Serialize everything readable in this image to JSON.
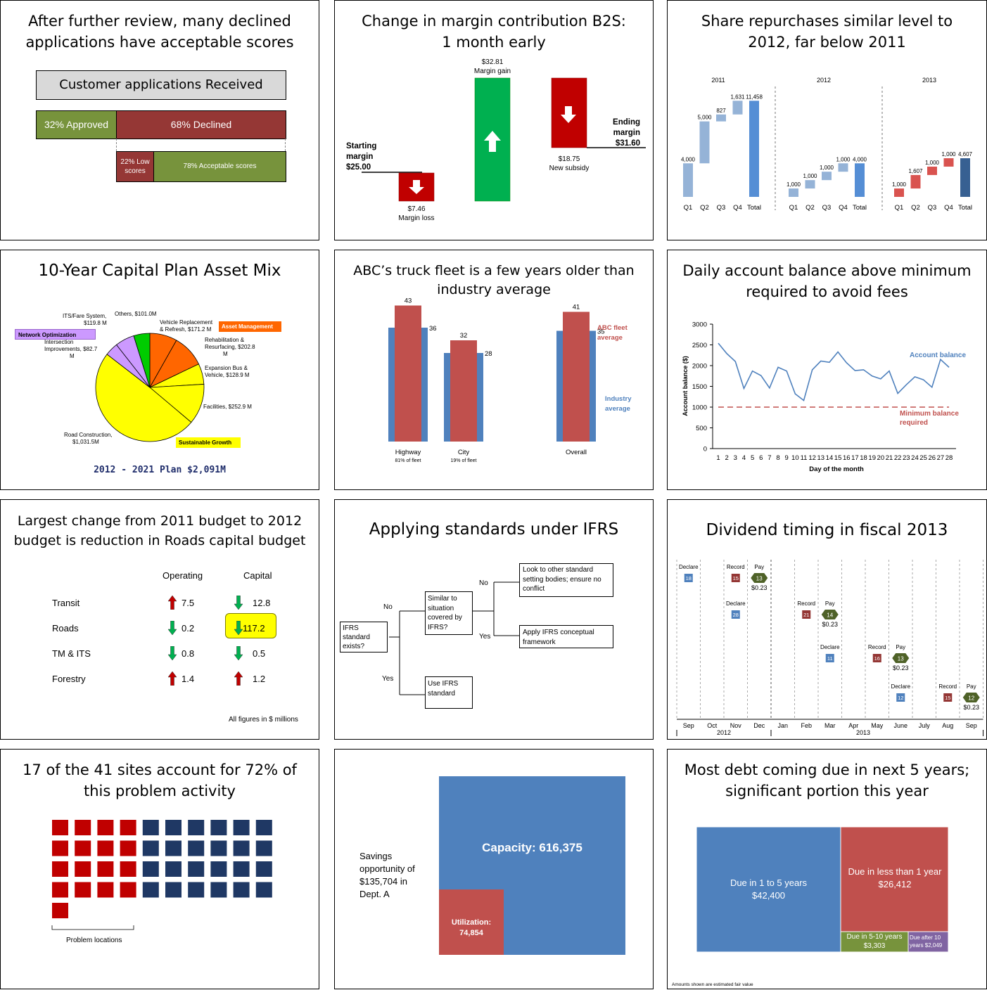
{
  "p1": {
    "title": "After further review, many declined\napplications have acceptable scores",
    "header": "Customer applications Received",
    "approved": "32% Approved",
    "declined": "68% Declined",
    "low": "22% Low\nscores",
    "acceptable": "78% Acceptable scores",
    "colors": {
      "green": "#77933c",
      "red": "#953735",
      "gray": "#d9d9d9"
    }
  },
  "p2": {
    "title": "Change in margin contribution B2S:\n1 month early",
    "start": "Starting\nmargin\n$25.00",
    "loss": "$7.46\nMargin loss",
    "gain": "$32.81\nMargin gain",
    "subsidy": "$18.75\nNew subsidy",
    "ending": "Ending\nmargin\n$31.60"
  },
  "p3": {
    "title": "Share repurchases similar level to\n2012, far below 2011"
  },
  "p4": {
    "title": "10-Year Capital Plan Asset Mix",
    "footer": "2012 - 2021 Plan $2,091M",
    "tag_network": "Network Optimization",
    "tag_asset": "Asset Management",
    "tag_growth": "Sustainable Growth"
  },
  "p5": {
    "title": "ABC’s truck fleet is a few years older than\nindustry average",
    "fleet_label": "ABC fleet\naverage",
    "industry_label": "Industry\naverage"
  },
  "p6": {
    "title": "Daily account balance above minimum\nrequired to avoid fees",
    "series_label": "Account balance",
    "min_label": "Minimum balance\nrequired"
  },
  "p7": {
    "title": "Largest change from 2011 budget to 2012\nbudget is reduction in Roads capital budget",
    "col_operating": "Operating",
    "col_capital": "Capital",
    "footnote": "All figures in $ millions",
    "rows": [
      {
        "name": "Transit",
        "op": "7.5",
        "op_dir": "up",
        "cap": "12.8",
        "cap_dir": "down"
      },
      {
        "name": "Roads",
        "op": "0.2",
        "op_dir": "down",
        "cap": "117.2",
        "cap_dir": "down"
      },
      {
        "name": "TM & ITS",
        "op": "0.8",
        "op_dir": "down",
        "cap": "0.5",
        "cap_dir": "down"
      },
      {
        "name": "Forestry",
        "op": "1.4",
        "op_dir": "up",
        "cap": "1.2",
        "cap_dir": "up"
      }
    ]
  },
  "p8": {
    "title": "Applying standards under IFRS",
    "exists": "IFRS\nstandard\nexists?",
    "similar": "Similar to\nsituation\ncovered by\nIFRS?",
    "other": "Look to other standard\nsetting bodies; ensure no\nconflict",
    "apply": "Apply IFRS conceptual\nframework",
    "use": "Use IFRS\nstandard",
    "no1": "No",
    "no2": "No",
    "yes1": "Yes",
    "yes2": "Yes"
  },
  "p9": {
    "title": "Dividend timing in fiscal 2013",
    "months": [
      "Sep",
      "Oct",
      "Nov",
      "Dec",
      "Jan",
      "Feb",
      "Mar",
      "Apr",
      "May",
      "June",
      "July",
      "Aug",
      "Sep"
    ],
    "year1": "2012",
    "year2": "2013"
  },
  "p10": {
    "title": "17 of the 41 sites account for 72% of\nthis problem activity",
    "caption": "Problem locations"
  },
  "p11": {
    "savings": "Savings\nopportunity of\n$135,704 in\nDept. A",
    "capacity": "Capacity: 616,375",
    "utilization": "Utilization:\n74,854"
  },
  "p12": {
    "title": "Most debt coming due in next 5 years;\nsignificant portion this year",
    "b1": "Due in 1 to 5 years\n$42,400",
    "b2": "Due in less than 1 year\n$26,412",
    "b3": "Due in 5-10 years\n$3,303",
    "b4": "Due after 10\nyears $2,049",
    "foot": "Amounts  shown are estimated fair value"
  },
  "chart_data": [
    {
      "type": "bar",
      "title": "Change in margin contribution B2S: 1 month early",
      "categories": [
        "Starting margin",
        "Margin loss",
        "Margin gain",
        "New subsidy",
        "Ending margin"
      ],
      "values": [
        25.0,
        -7.46,
        32.81,
        -18.75,
        31.6
      ]
    },
    {
      "type": "bar",
      "title": "Share repurchases similar level to 2012, far below 2011",
      "series": [
        {
          "name": "2011",
          "categories": [
            "Q1",
            "Q2",
            "Q3",
            "Q4",
            "Total"
          ],
          "values": [
            4000,
            5000,
            827,
            1631,
            11458
          ]
        },
        {
          "name": "2012",
          "categories": [
            "Q1",
            "Q2",
            "Q3",
            "Q4",
            "Total"
          ],
          "values": [
            1000,
            1000,
            1000,
            1000,
            4000
          ]
        },
        {
          "name": "2013",
          "categories": [
            "Q1",
            "Q2",
            "Q3",
            "Q4",
            "Total"
          ],
          "values": [
            1000,
            1607,
            1000,
            1000,
            4607
          ]
        }
      ]
    },
    {
      "type": "pie",
      "title": "10-Year Capital Plan Asset Mix",
      "categories": [
        "Road Construction, $1,031.5M",
        "Facilities, $252.9 M",
        "Expansion Bus & Vehicle, $128.9 M",
        "Rehabilitation & Resurfacing, $202.8 M",
        "Vehicle Replacement & Refresh, $171.2 M",
        "Others, $101.0M",
        "ITS/Fare System, $119.8 M",
        "Intersection Improvements, $82.7 M"
      ],
      "values": [
        1031.5,
        252.9,
        128.9,
        202.8,
        171.2,
        101.0,
        119.8,
        82.7
      ],
      "colors": [
        "#ffff00",
        "#ffff00",
        "#ffff00",
        "#ff6600",
        "#ff6600",
        "#00cc00",
        "#cc99ff",
        "#cc99ff"
      ]
    },
    {
      "type": "bar",
      "title": "ABC’s truck fleet is a few years older than industry average",
      "categories": [
        "Highway",
        "City",
        "Overall"
      ],
      "sublabels": [
        "81% of fleet",
        "19% of fleet",
        ""
      ],
      "series": [
        {
          "name": "ABC fleet average",
          "values": [
            43,
            32,
            41
          ]
        },
        {
          "name": "Industry average",
          "values": [
            36,
            28,
            35
          ]
        }
      ]
    },
    {
      "type": "line",
      "title": "Daily account balance above minimum required to avoid fees",
      "xlabel": "Day of the month",
      "ylabel": "Account balance ($)",
      "ylim": [
        0,
        3000
      ],
      "yticks": [
        0,
        500,
        1000,
        1500,
        2000,
        2500,
        3000
      ],
      "x": [
        1,
        2,
        3,
        4,
        5,
        6,
        7,
        8,
        9,
        10,
        11,
        12,
        13,
        14,
        15,
        16,
        17,
        18,
        19,
        20,
        21,
        22,
        23,
        24,
        25,
        26,
        27,
        28
      ],
      "series": [
        {
          "name": "Account balance",
          "values": [
            2540,
            2290,
            2100,
            1450,
            1870,
            1760,
            1460,
            1960,
            1870,
            1320,
            1160,
            1900,
            2110,
            2080,
            2330,
            2070,
            1880,
            1900,
            1750,
            1680,
            1870,
            1330,
            1540,
            1730,
            1660,
            1480,
            2150,
            1960
          ]
        },
        {
          "name": "Minimum balance required",
          "values": [
            1000,
            1000,
            1000,
            1000,
            1000,
            1000,
            1000,
            1000,
            1000,
            1000,
            1000,
            1000,
            1000,
            1000,
            1000,
            1000,
            1000,
            1000,
            1000,
            1000,
            1000,
            1000,
            1000,
            1000,
            1000,
            1000,
            1000,
            1000
          ]
        }
      ]
    },
    {
      "type": "scatter",
      "title": "Dividend timing in fiscal 2013",
      "events": [
        {
          "label": "Declare",
          "day": "18",
          "month": 0.5
        },
        {
          "label": "Record",
          "day": "15",
          "month": 2.5
        },
        {
          "label": "Pay",
          "day": "13",
          "amount": "$0.23",
          "month": 3.5
        },
        {
          "label": "Declare",
          "day": "28",
          "month": 2.5
        },
        {
          "label": "Record",
          "day": "21",
          "month": 5.5
        },
        {
          "label": "Pay",
          "day": "14",
          "amount": "$0.23",
          "month": 6.5
        },
        {
          "label": "Declare",
          "day": "11",
          "month": 6.5
        },
        {
          "label": "Record",
          "day": "16",
          "month": 8.5
        },
        {
          "label": "Pay",
          "day": "13",
          "amount": "$0.23",
          "month": 9.5
        },
        {
          "label": "Declare",
          "day": "12",
          "month": 9.5
        },
        {
          "label": "Record",
          "day": "15",
          "month": 11.5
        },
        {
          "label": "Pay",
          "day": "12",
          "amount": "$0.23",
          "month": 12.5
        }
      ]
    },
    {
      "type": "table",
      "title": "17 of the 41 sites account for 72% of this problem activity",
      "total_sites": 41,
      "problem_sites": 17
    },
    {
      "type": "area",
      "categories": [
        "Capacity",
        "Utilization"
      ],
      "values": [
        616375,
        74854
      ]
    },
    {
      "type": "area",
      "title": "Most debt coming due in next 5 years; significant portion this year",
      "categories": [
        "Due in 1 to 5 years",
        "Due in less than 1 year",
        "Due in 5-10 years",
        "Due after 10 years"
      ],
      "values": [
        42400,
        26412,
        3303,
        2049
      ]
    }
  ]
}
